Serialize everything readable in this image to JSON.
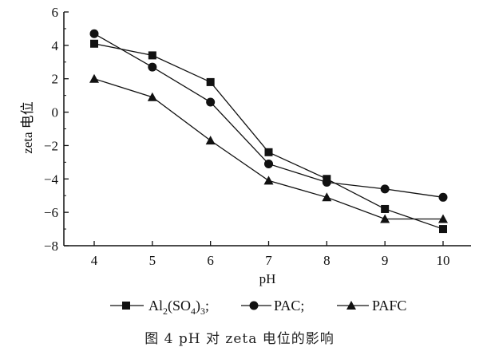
{
  "figure": {
    "caption": "图 4    pH 对 zeta 电位的影响"
  },
  "chart_data": {
    "type": "line",
    "xlabel": "pH",
    "ylabel": "zeta 电位",
    "xlim": [
      4,
      10
    ],
    "ylim": [
      -8,
      6
    ],
    "x": [
      4,
      5,
      6,
      7,
      8,
      9,
      10
    ],
    "x_ticks": [
      "4",
      "5",
      "6",
      "7",
      "8",
      "9",
      "10"
    ],
    "y_ticks": [
      -8,
      -6,
      -4,
      -2,
      0,
      2,
      4,
      6
    ],
    "y_tick_labels": [
      "−8",
      "−6",
      "−4",
      "−2",
      "0",
      "2",
      "4",
      "6"
    ],
    "grid": false,
    "legend_position": "bottom",
    "series": [
      {
        "name": "Al2(SO4)3",
        "legend_main": "Al",
        "legend_sub1": "2",
        "legend_mid": "(SO",
        "legend_sub2": "4",
        "legend_close": ")",
        "legend_sub3": "3",
        "legend_sep": ";",
        "marker": "square",
        "values": [
          4.1,
          3.4,
          1.8,
          -2.4,
          -4.0,
          -5.8,
          -7.0
        ]
      },
      {
        "name": "PAC",
        "legend_label": "PAC",
        "legend_sep": ";",
        "marker": "circle",
        "values": [
          4.7,
          2.7,
          0.6,
          -3.1,
          -4.2,
          -4.6,
          -5.1
        ]
      },
      {
        "name": "PAFC",
        "legend_label": "PAFC",
        "marker": "triangle",
        "values": [
          2.0,
          0.9,
          -1.7,
          -4.1,
          -5.1,
          -6.4,
          -6.4
        ]
      }
    ]
  }
}
